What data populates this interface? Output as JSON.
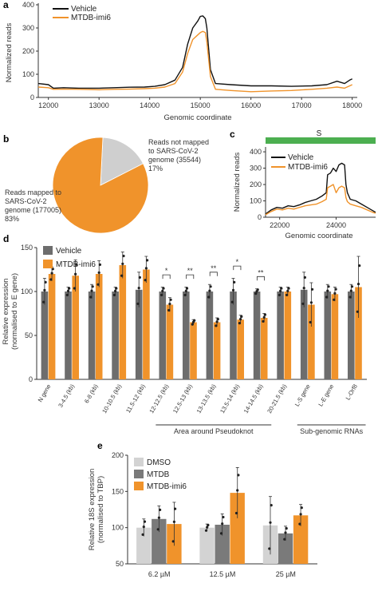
{
  "panels": {
    "a": {
      "letter": "a",
      "chart_data": {
        "type": "line",
        "xlabel": "Genomic coordinate",
        "ylabel": "Normalized reads",
        "xlim": [
          11800,
          18100
        ],
        "ylim": [
          0,
          400
        ],
        "xticks": [
          12000,
          13000,
          14000,
          15000,
          16000,
          17000,
          18000
        ],
        "yticks": [
          0,
          100,
          200,
          300,
          400
        ],
        "series": [
          {
            "name": "Vehicle",
            "color": "#111111",
            "x": [
              11800,
              12000,
              12100,
              12300,
              12600,
              13000,
              13300,
              13600,
              13900,
              14100,
              14300,
              14500,
              14650,
              14750,
              14850,
              14950,
              15000,
              15050,
              15100,
              15130,
              15200,
              15300,
              15600,
              16000,
              16400,
              16800,
              17200,
              17500,
              17700,
              17850,
              17950,
              18000
            ],
            "y": [
              60,
              55,
              40,
              42,
              40,
              40,
              42,
              44,
              45,
              48,
              55,
              75,
              130,
              230,
              300,
              330,
              350,
              352,
              340,
              300,
              120,
              60,
              55,
              50,
              50,
              48,
              50,
              55,
              70,
              60,
              75,
              80
            ]
          },
          {
            "name": "MTDB-imi6",
            "color": "#f0932b",
            "x": [
              11800,
              12000,
              12100,
              12300,
              12600,
              13000,
              13300,
              13600,
              13900,
              14100,
              14300,
              14500,
              14650,
              14750,
              14850,
              14950,
              15000,
              15050,
              15100,
              15130,
              15200,
              15300,
              15600,
              16000,
              16400,
              16800,
              17200,
              17500,
              17700,
              17850,
              17950,
              18000
            ],
            "y": [
              45,
              42,
              35,
              36,
              35,
              33,
              35,
              36,
              38,
              40,
              45,
              60,
              110,
              190,
              250,
              270,
              280,
              285,
              280,
              240,
              90,
              35,
              30,
              25,
              28,
              30,
              35,
              40,
              45,
              40,
              50,
              55
            ]
          }
        ]
      }
    },
    "b": {
      "letter": "b",
      "chart_data": {
        "type": "pie",
        "slices": [
          {
            "label_lines": [
              "Reads mapped to",
              "SARS-CoV-2",
              "genome (177005)",
              "83%"
            ],
            "value": 177005,
            "percent": 83,
            "color": "#f0932b"
          },
          {
            "label_lines": [
              "Reads not mapped",
              "to SARS-CoV-2",
              "genome (35544)",
              "17%"
            ],
            "value": 35544,
            "percent": 17,
            "color": "#cfcfcf"
          }
        ]
      }
    },
    "c": {
      "letter": "c",
      "s_label": "S",
      "s_bar_color": "#4caf50",
      "chart_data": {
        "type": "line",
        "xlabel": "Genomic coordinate",
        "ylabel": "Normalized reads",
        "xlim": [
          21500,
          25400
        ],
        "ylim": [
          0,
          420
        ],
        "xticks": [
          22000,
          24000
        ],
        "yticks": [
          0,
          100,
          200,
          300,
          400
        ],
        "series": [
          {
            "name": "Vehicle",
            "color": "#111111",
            "x": [
              21500,
              21700,
              21900,
              22100,
              22300,
              22500,
              22700,
              22900,
              23100,
              23300,
              23500,
              23650,
              23700,
              23800,
              23900,
              24000,
              24100,
              24200,
              24300,
              24350,
              24400,
              24500,
              24700,
              24900,
              25100,
              25300,
              25400
            ],
            "y": [
              20,
              45,
              60,
              55,
              70,
              65,
              75,
              90,
              100,
              110,
              130,
              150,
              260,
              270,
              300,
              280,
              320,
              330,
              320,
              200,
              150,
              110,
              100,
              80,
              60,
              40,
              30
            ]
          },
          {
            "name": "MTDB-imi6",
            "color": "#f0932b",
            "x": [
              21500,
              21700,
              21900,
              22100,
              22300,
              22500,
              22700,
              22900,
              23100,
              23300,
              23500,
              23650,
              23700,
              23800,
              23900,
              24000,
              24100,
              24200,
              24300,
              24350,
              24400,
              24500,
              24700,
              24900,
              25100,
              25300,
              25400
            ],
            "y": [
              15,
              35,
              50,
              45,
              55,
              50,
              60,
              70,
              75,
              80,
              95,
              110,
              180,
              190,
              200,
              150,
              180,
              190,
              180,
              120,
              95,
              80,
              70,
              60,
              45,
              30,
              25
            ]
          }
        ]
      }
    },
    "d": {
      "letter": "d",
      "chart_data": {
        "type": "bar",
        "ylabel_lines": [
          "Relative expression",
          "(normalised to E gene)"
        ],
        "ylim": [
          0,
          150
        ],
        "yticks": [
          0,
          50,
          100,
          150
        ],
        "categories": [
          "N gene",
          "3-4.5 (kb)",
          "6-8 (kb)",
          "10-10.5 (kb)",
          "11.5-12 (kb)",
          "12-12.5 (kb)",
          "12.5-13 (kb)",
          "13-13.5 (kb)",
          "13.5-14 (kb)",
          "14-14.5 (kb)",
          "20-21.5 (kb)",
          "L-S gene",
          "L-E gene",
          "L-Orf8"
        ],
        "series": [
          {
            "name": "Vehicle",
            "color": "#6d6d6d",
            "values": [
              100,
              100,
              100,
              100,
              102,
              100,
              100,
              100,
              100,
              100,
              100,
              102,
              100,
              100
            ],
            "errors": [
              15,
              5,
              8,
              5,
              20,
              5,
              5,
              8,
              15,
              3,
              5,
              20,
              8,
              8
            ]
          },
          {
            "name": "MTDB-imi6",
            "color": "#f0932b",
            "values": [
              120,
              118,
              120,
              130,
              125,
              85,
              65,
              65,
              68,
              70,
              100,
              85,
              97,
              105
            ],
            "errors": [
              8,
              18,
              15,
              15,
              15,
              8,
              3,
              5,
              5,
              5,
              5,
              25,
              8,
              35
            ]
          }
        ],
        "significance": [
          {
            "category_index": 5,
            "label": "*"
          },
          {
            "category_index": 6,
            "label": "**"
          },
          {
            "category_index": 7,
            "label": "**"
          },
          {
            "category_index": 8,
            "label": "*"
          },
          {
            "category_index": 9,
            "label": "**"
          }
        ],
        "groups": [
          {
            "label": "Area around Pseudoknot",
            "from": 5,
            "to": 9
          },
          {
            "label": "Sub-genomic RNAs",
            "from": 11,
            "to": 13
          }
        ]
      }
    },
    "e": {
      "letter": "e",
      "chart_data": {
        "type": "bar",
        "ylabel_lines": [
          "Relative 18S expression",
          "(normalised to TBP)"
        ],
        "ylim": [
          50,
          200
        ],
        "yticks": [
          50,
          100,
          150,
          200
        ],
        "categories": [
          "6.2 µM",
          "12.5 µM",
          "25 µM"
        ],
        "series": [
          {
            "name": "DMSO",
            "color": "#d3d3d3",
            "values": [
              100,
              100,
              103
            ],
            "errors": [
              12,
              5,
              40
            ]
          },
          {
            "name": "MTDB",
            "color": "#7a7a7a",
            "values": [
              112,
              104,
              92
            ],
            "errors": [
              18,
              15,
              10
            ]
          },
          {
            "name": "MTDB-imi6",
            "color": "#f0932b",
            "values": [
              105,
              148,
              117
            ],
            "errors": [
              30,
              35,
              15
            ]
          }
        ]
      }
    }
  }
}
